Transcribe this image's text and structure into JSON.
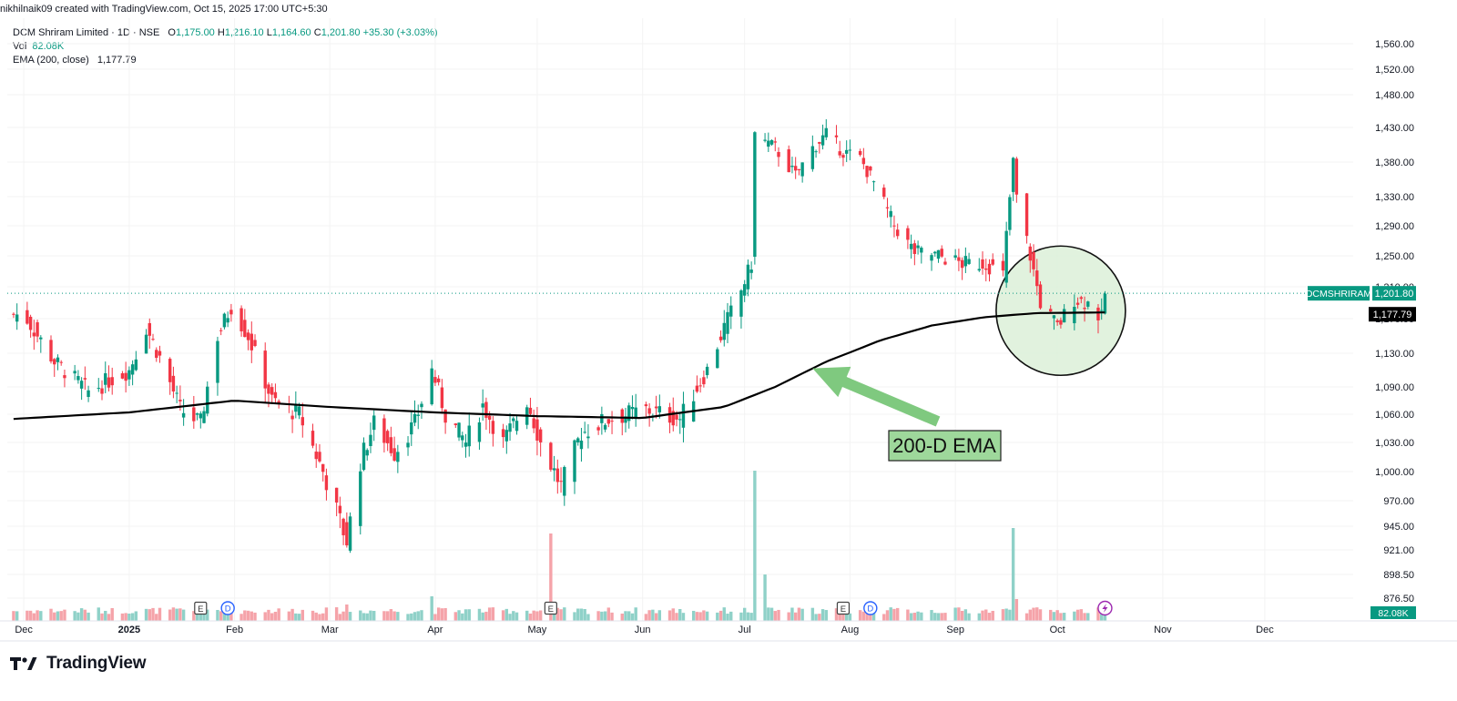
{
  "header": {
    "credit": "nikhilnaik09 created with TradingView.com, Oct 15, 2025 17:00 UTC+5:30"
  },
  "legend": {
    "symbol_line": "DCM Shriram Limited · 1D · NSE",
    "ohlc": [
      {
        "label": "O",
        "value": "1,175.00"
      },
      {
        "label": "H",
        "value": "1,216.10"
      },
      {
        "label": "L",
        "value": "1,164.60"
      },
      {
        "label": "C",
        "value": "1,201.80"
      }
    ],
    "change": "+35.30 (+3.03%)",
    "vol_label": "Vol",
    "vol_value": "82.08K",
    "ema_label": "EMA (200, close)",
    "ema_value": "1,177.79"
  },
  "brand": {
    "name": "TradingView"
  },
  "colors": {
    "up": "#089981",
    "down": "#f23645",
    "up_vol": "#8fd1c8",
    "down_vol": "#f5a3a9",
    "ema": "#000000",
    "annotation_fill": "#9ed89b",
    "arrow": "#7fc97f",
    "circle_fill": "#dcf0d8"
  },
  "chart_data": {
    "type": "candlestick",
    "symbol": "DCMSHRIRAM",
    "interval": "1D",
    "exchange": "NSE",
    "y_ticks": [
      1560,
      1520,
      1480,
      1430,
      1380,
      1330,
      1290,
      1250,
      1210,
      1170,
      1130,
      1090,
      1060,
      1030,
      1000,
      970,
      945,
      921,
      898.5,
      876.5
    ],
    "y_tick_labels": [
      "1,560.00",
      "1,520.00",
      "1,480.00",
      "1,430.00",
      "1,380.00",
      "1,330.00",
      "1,290.00",
      "1,250.00",
      "1,210.00",
      "1,170.00",
      "1,130.00",
      "1,090.00",
      "1,060.00",
      "1,030.00",
      "1,000.00",
      "970.00",
      "945.00",
      "921.00",
      "898.50",
      "876.50"
    ],
    "x_labels": [
      "Dec",
      "2025",
      "Feb",
      "Mar",
      "Apr",
      "May",
      "Jun",
      "Jul",
      "Aug",
      "Sep",
      "Oct",
      "Nov",
      "Dec"
    ],
    "x_label_dates": [
      "2024-12-01",
      "2025-01-01",
      "2025-02-01",
      "2025-03-01",
      "2025-04-01",
      "2025-05-01",
      "2025-06-01",
      "2025-07-01",
      "2025-08-01",
      "2025-09-01",
      "2025-10-01",
      "2025-11-01",
      "2025-12-01"
    ],
    "last_price": {
      "label": "DCMSHRIRAM",
      "value": 1201.8,
      "value_label": "1,201.80"
    },
    "ema": {
      "name": "EMA (200, close)",
      "last_value": 1177.79,
      "last_label": "1,177.79"
    },
    "volume_last_label": "82.08K",
    "price_keypoints": [
      [
        "2024-12-01",
        1175
      ],
      [
        "2024-12-10",
        1120
      ],
      [
        "2024-12-20",
        1085
      ],
      [
        "2025-01-01",
        1110
      ],
      [
        "2025-01-06",
        1160
      ],
      [
        "2025-01-10",
        1125
      ],
      [
        "2025-01-16",
        1065
      ],
      [
        "2025-01-22",
        1050
      ],
      [
        "2025-01-27",
        1150
      ],
      [
        "2025-01-31",
        1185
      ],
      [
        "2025-02-05",
        1150
      ],
      [
        "2025-02-12",
        1075
      ],
      [
        "2025-02-20",
        1060
      ],
      [
        "2025-02-27",
        1000
      ],
      [
        "2025-03-06",
        930
      ],
      [
        "2025-03-10",
        1010
      ],
      [
        "2025-03-14",
        1050
      ],
      [
        "2025-03-20",
        1020
      ],
      [
        "2025-03-26",
        1050
      ],
      [
        "2025-03-31",
        1110
      ],
      [
        "2025-04-04",
        1060
      ],
      [
        "2025-04-10",
        1030
      ],
      [
        "2025-04-15",
        1070
      ],
      [
        "2025-04-21",
        1030
      ],
      [
        "2025-04-28",
        1075
      ],
      [
        "2025-05-02",
        1030
      ],
      [
        "2025-05-08",
        985
      ],
      [
        "2025-05-14",
        1040
      ],
      [
        "2025-05-22",
        1055
      ],
      [
        "2025-06-02",
        1065
      ],
      [
        "2025-06-12",
        1055
      ],
      [
        "2025-06-20",
        1110
      ],
      [
        "2025-06-25",
        1160
      ],
      [
        "2025-06-30",
        1205
      ],
      [
        "2025-07-03",
        1240
      ],
      [
        "2025-07-04",
        1420
      ],
      [
        "2025-07-10",
        1400
      ],
      [
        "2025-07-16",
        1360
      ],
      [
        "2025-07-21",
        1400
      ],
      [
        "2025-07-25",
        1420
      ],
      [
        "2025-07-30",
        1395
      ],
      [
        "2025-08-04",
        1385
      ],
      [
        "2025-08-08",
        1350
      ],
      [
        "2025-08-14",
        1290
      ],
      [
        "2025-08-20",
        1255
      ],
      [
        "2025-08-27",
        1250
      ],
      [
        "2025-09-03",
        1240
      ],
      [
        "2025-09-10",
        1240
      ],
      [
        "2025-09-15",
        1225
      ],
      [
        "2025-09-18",
        1380
      ],
      [
        "2025-09-19",
        1330
      ],
      [
        "2025-09-23",
        1250
      ],
      [
        "2025-09-26",
        1190
      ],
      [
        "2025-10-01",
        1160
      ],
      [
        "2025-10-06",
        1195
      ],
      [
        "2025-10-10",
        1190
      ],
      [
        "2025-10-14",
        1170
      ],
      [
        "2025-10-15",
        1201.8
      ]
    ],
    "volume_keypoints": [
      [
        "2025-03-06",
        6
      ],
      [
        "2025-03-31",
        9
      ],
      [
        "2025-05-05",
        32
      ],
      [
        "2025-07-04",
        55
      ],
      [
        "2025-07-07",
        17
      ],
      [
        "2025-09-18",
        34
      ],
      [
        "2025-09-19",
        8
      ]
    ],
    "ema_keypoints": [
      [
        "2024-11-28",
        1055
      ],
      [
        "2025-01-01",
        1062
      ],
      [
        "2025-02-01",
        1075
      ],
      [
        "2025-03-01",
        1068
      ],
      [
        "2025-04-01",
        1062
      ],
      [
        "2025-05-01",
        1058
      ],
      [
        "2025-06-01",
        1056
      ],
      [
        "2025-06-25",
        1068
      ],
      [
        "2025-07-10",
        1090
      ],
      [
        "2025-07-25",
        1120
      ],
      [
        "2025-08-10",
        1145
      ],
      [
        "2025-08-25",
        1162
      ],
      [
        "2025-09-10",
        1172
      ],
      [
        "2025-09-25",
        1177
      ],
      [
        "2025-10-15",
        1177.79
      ]
    ],
    "annotations": {
      "arrow_label": "200-D EMA"
    },
    "event_markers": [
      {
        "type": "E",
        "date": "2025-01-22"
      },
      {
        "type": "D",
        "date": "2025-01-30"
      },
      {
        "type": "E",
        "date": "2025-05-05"
      },
      {
        "type": "E",
        "date": "2025-07-30"
      },
      {
        "type": "D",
        "date": "2025-08-07"
      },
      {
        "type": "bolt",
        "date": "2025-10-15"
      }
    ]
  }
}
